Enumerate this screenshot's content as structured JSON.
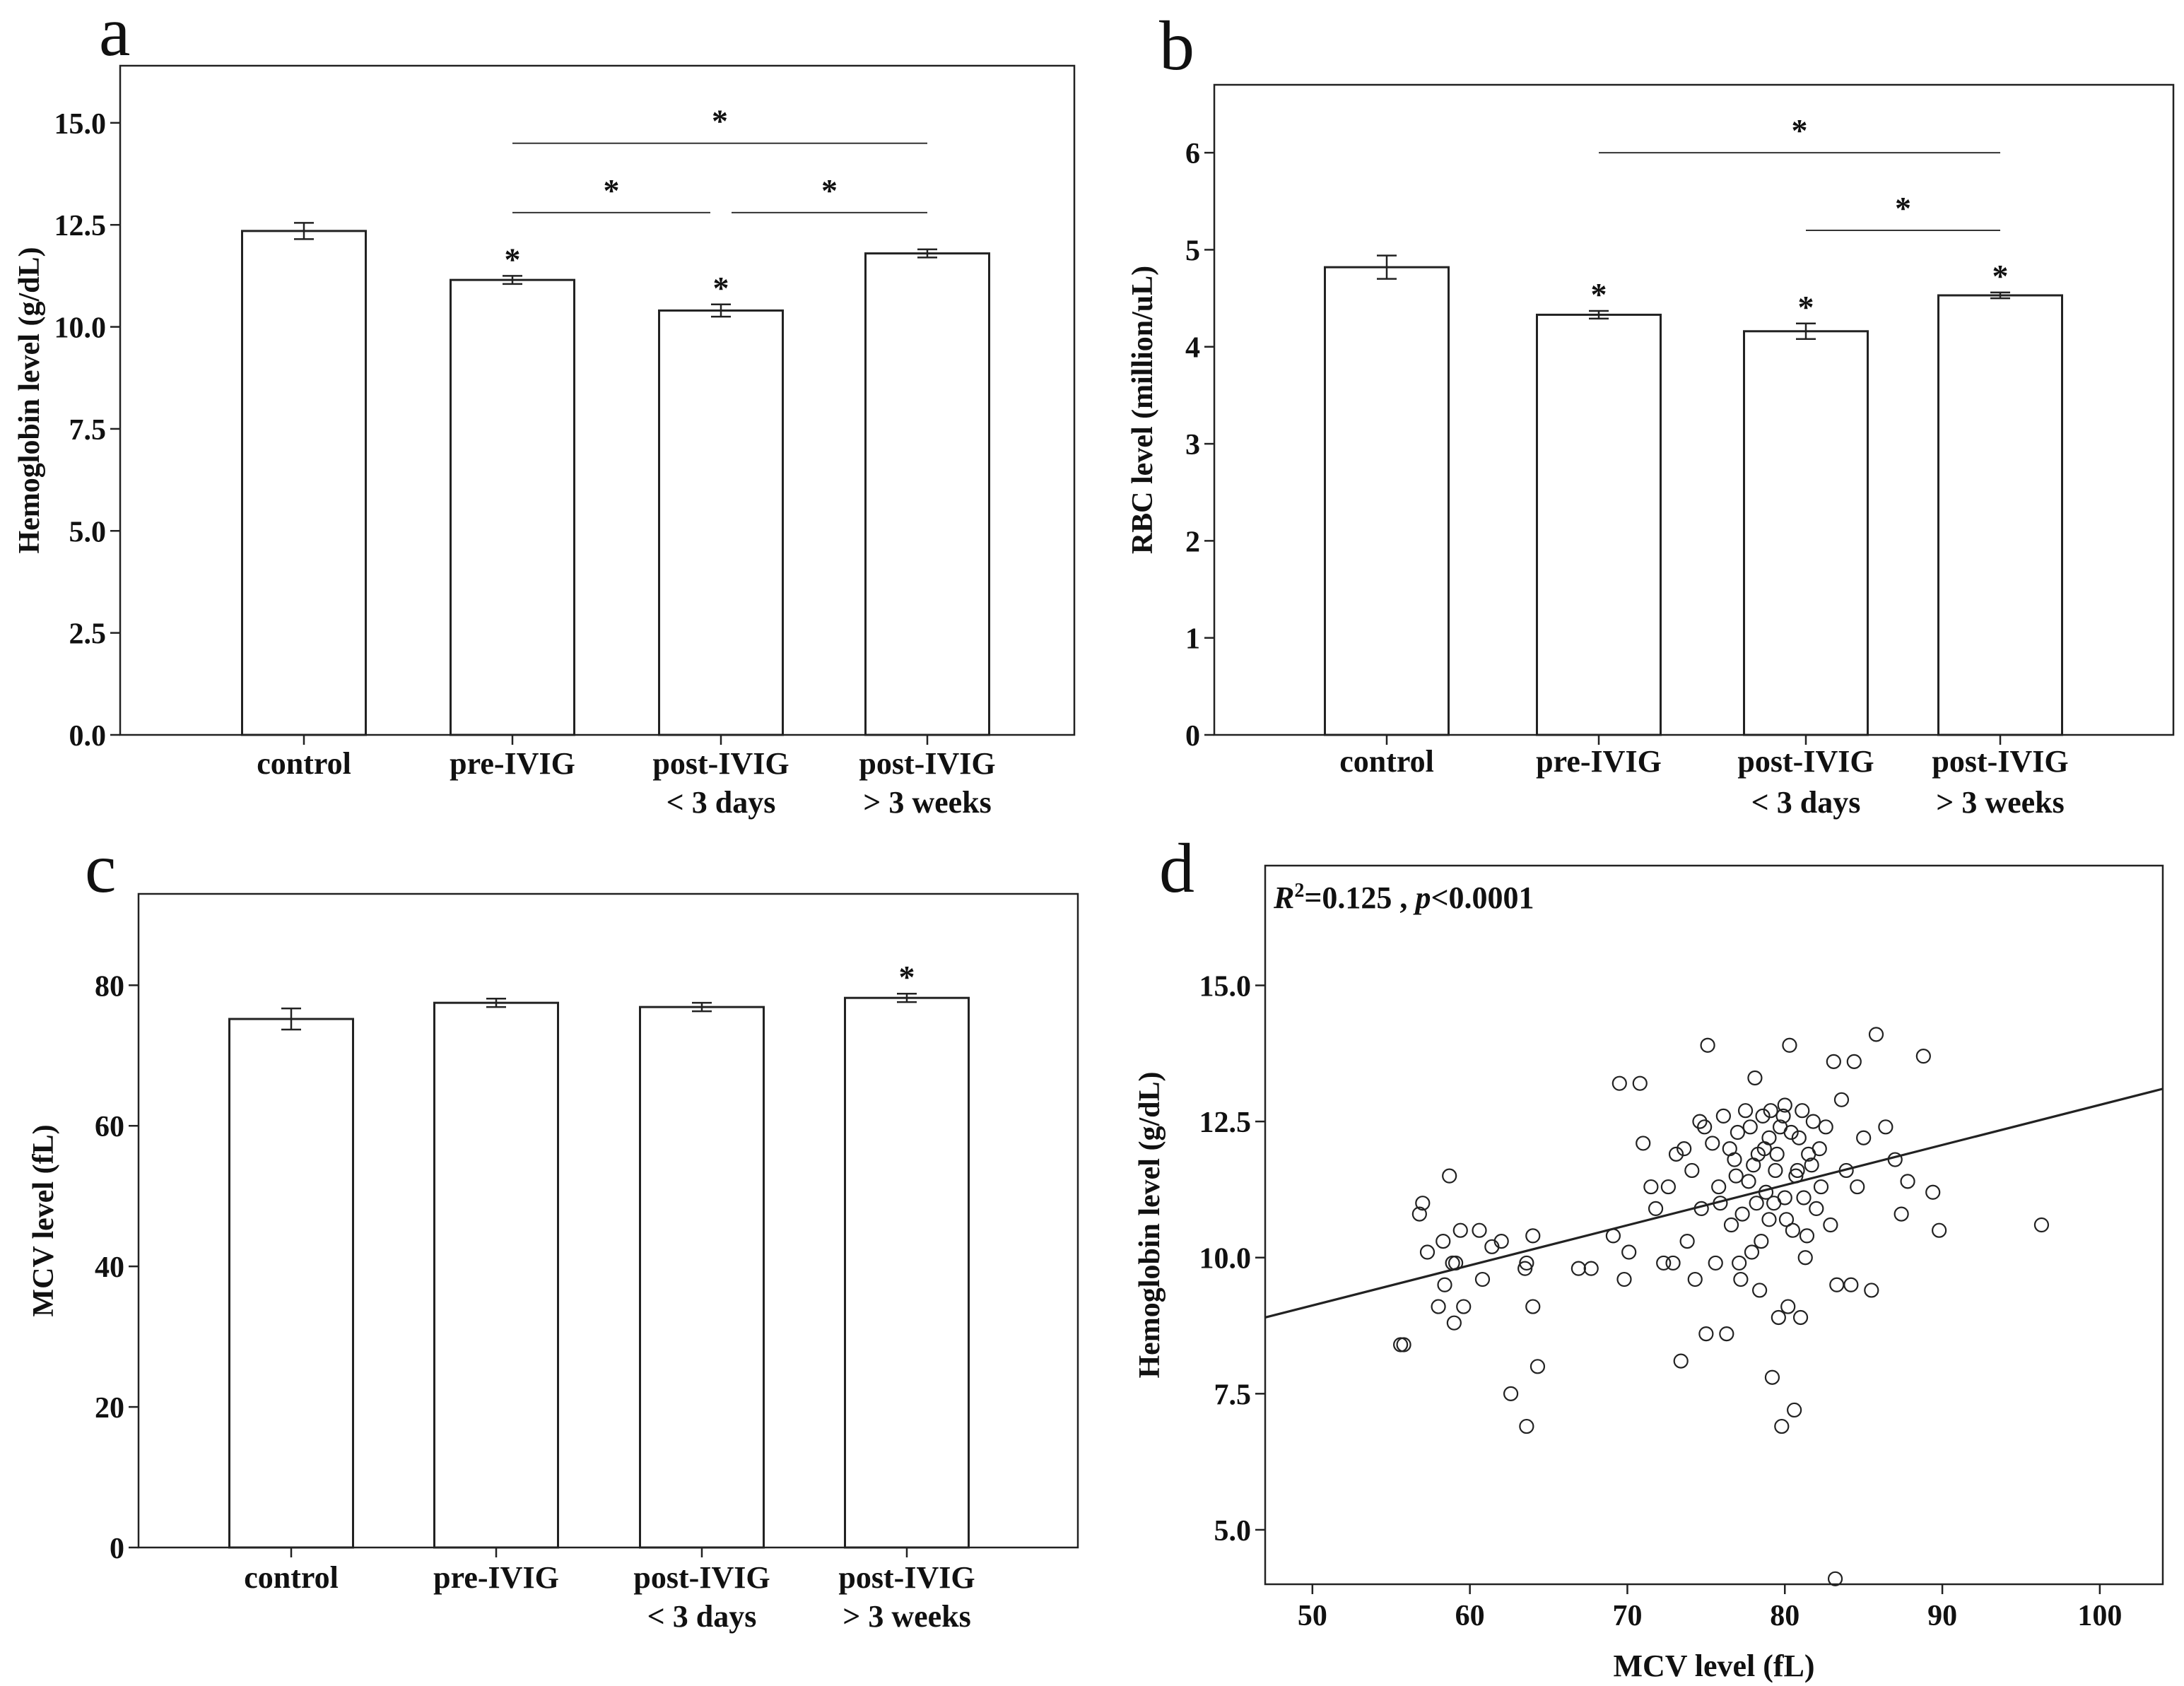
{
  "chart_data": [
    {
      "panel": "a",
      "type": "bar",
      "ylabel": "Hemoglobin level (g/dL)",
      "ylim": [
        0,
        16.4
      ],
      "yticks": [
        "0.0",
        "2.5",
        "5.0",
        "7.5",
        "10.0",
        "12.5",
        "15.0"
      ],
      "categories": [
        [
          "control"
        ],
        [
          "pre-IVIG"
        ],
        [
          "post-IVIG",
          "< 3 days"
        ],
        [
          "post-IVIG",
          "> 3 weeks"
        ]
      ],
      "values": [
        12.35,
        11.15,
        10.4,
        11.8
      ],
      "errors": [
        0.2,
        0.1,
        0.15,
        0.1
      ],
      "bar_star": [
        false,
        true,
        true,
        false
      ],
      "star_symbol": "*",
      "brackets": [
        {
          "from": 1,
          "to": 3,
          "value": 14.5
        },
        {
          "from": 1,
          "to": 2,
          "value": 12.8
        },
        {
          "from": 2,
          "to": 3,
          "value": 12.8
        }
      ]
    },
    {
      "panel": "b",
      "type": "bar",
      "ylabel": "RBC  level (million/uL)",
      "ylim": [
        0,
        6.7
      ],
      "yticks": [
        "0",
        "1",
        "2",
        "3",
        "4",
        "5",
        "6"
      ],
      "categories": [
        [
          "control"
        ],
        [
          "pre-IVIG"
        ],
        [
          "post-IVIG",
          "< 3 days"
        ],
        [
          "post-IVIG",
          "> 3 weeks"
        ]
      ],
      "values": [
        4.82,
        4.33,
        4.16,
        4.53
      ],
      "errors": [
        0.12,
        0.04,
        0.08,
        0.03
      ],
      "bar_star": [
        false,
        true,
        true,
        true
      ],
      "star_symbol": "*",
      "brackets": [
        {
          "from": 1,
          "to": 3,
          "value": 6.0
        },
        {
          "from": 2,
          "to": 3,
          "value": 5.2
        }
      ]
    },
    {
      "panel": "c",
      "type": "bar",
      "ylabel": "MCV  level (fL)",
      "ylim": [
        0,
        93
      ],
      "yticks": [
        "0",
        "20",
        "40",
        "60",
        "80"
      ],
      "categories": [
        [
          "control"
        ],
        [
          "pre-IVIG"
        ],
        [
          "post-IVIG",
          "< 3 days"
        ],
        [
          "post-IVIG",
          "> 3 weeks"
        ]
      ],
      "values": [
        75.2,
        77.5,
        76.9,
        78.2
      ],
      "errors": [
        1.5,
        0.6,
        0.6,
        0.6
      ],
      "bar_star": [
        false,
        false,
        false,
        true
      ],
      "star_symbol": "*",
      "brackets": []
    },
    {
      "panel": "d",
      "type": "scatter",
      "annotation": {
        "r2_symbol": "R",
        "r2_sup": "2",
        "r2_value": "=0.125 , ",
        "p_symbol": "p",
        "p_value": "<0.0001"
      },
      "xlabel": "MCV level (fL)",
      "ylabel": "Hemoglobin level (g/dL)",
      "xlim": [
        47,
        104
      ],
      "ylim": [
        4.0,
        17.2
      ],
      "xticks": [
        "50",
        "60",
        "70",
        "80",
        "90",
        "100"
      ],
      "yticks": [
        "5.0",
        "7.5",
        "10.0",
        "12.5",
        "15.0"
      ],
      "fit_line": {
        "x": [
          47,
          104
        ],
        "y": [
          8.9,
          13.1
        ]
      },
      "points": [
        [
          55.6,
          8.4
        ],
        [
          55.8,
          8.4
        ],
        [
          56.8,
          10.8
        ],
        [
          57.0,
          11.0
        ],
        [
          57.3,
          10.1
        ],
        [
          58.0,
          9.1
        ],
        [
          58.3,
          10.3
        ],
        [
          58.4,
          9.5
        ],
        [
          58.7,
          11.5
        ],
        [
          58.9,
          9.9
        ],
        [
          59.0,
          8.8
        ],
        [
          59.1,
          9.9
        ],
        [
          59.4,
          10.5
        ],
        [
          59.6,
          9.1
        ],
        [
          60.6,
          10.5
        ],
        [
          60.8,
          9.6
        ],
        [
          61.4,
          10.2
        ],
        [
          62.0,
          10.3
        ],
        [
          62.6,
          7.5
        ],
        [
          63.5,
          9.8
        ],
        [
          63.6,
          9.9
        ],
        [
          63.6,
          6.9
        ],
        [
          64.0,
          9.1
        ],
        [
          64.0,
          10.4
        ],
        [
          64.3,
          8.0
        ],
        [
          66.9,
          9.8
        ],
        [
          67.7,
          9.8
        ],
        [
          69.1,
          10.4
        ],
        [
          69.5,
          13.2
        ],
        [
          69.8,
          9.6
        ],
        [
          70.1,
          10.1
        ],
        [
          70.8,
          13.2
        ],
        [
          71.0,
          12.1
        ],
        [
          71.5,
          11.3
        ],
        [
          71.8,
          10.9
        ],
        [
          72.3,
          9.9
        ],
        [
          72.6,
          11.3
        ],
        [
          72.9,
          9.9
        ],
        [
          73.1,
          11.9
        ],
        [
          73.4,
          8.1
        ],
        [
          73.6,
          12.0
        ],
        [
          73.8,
          10.3
        ],
        [
          74.1,
          11.6
        ],
        [
          74.3,
          9.6
        ],
        [
          74.6,
          12.5
        ],
        [
          75.0,
          8.6
        ],
        [
          75.1,
          13.9
        ],
        [
          75.4,
          12.1
        ],
        [
          75.6,
          9.9
        ],
        [
          75.9,
          11.0
        ],
        [
          76.1,
          12.6
        ],
        [
          76.3,
          8.6
        ],
        [
          76.6,
          10.6
        ],
        [
          76.8,
          11.8
        ],
        [
          77.0,
          12.3
        ],
        [
          77.2,
          9.6
        ],
        [
          77.5,
          12.7
        ],
        [
          77.7,
          11.4
        ],
        [
          77.9,
          10.1
        ],
        [
          78.1,
          13.3
        ],
        [
          78.3,
          11.9
        ],
        [
          78.4,
          9.4
        ],
        [
          78.6,
          12.6
        ],
        [
          78.8,
          11.2
        ],
        [
          79.0,
          10.7
        ],
        [
          79.1,
          12.7
        ],
        [
          79.2,
          7.8
        ],
        [
          79.4,
          11.6
        ],
        [
          79.6,
          8.9
        ],
        [
          79.7,
          12.4
        ],
        [
          79.8,
          6.9
        ],
        [
          80.0,
          11.1
        ],
        [
          80.2,
          9.1
        ],
        [
          80.3,
          13.9
        ],
        [
          80.4,
          12.3
        ],
        [
          80.5,
          10.5
        ],
        [
          80.6,
          7.2
        ],
        [
          80.8,
          11.6
        ],
        [
          81.0,
          8.9
        ],
        [
          81.1,
          12.7
        ],
        [
          81.3,
          10.0
        ],
        [
          81.5,
          11.9
        ],
        [
          81.8,
          12.5
        ],
        [
          82.0,
          10.9
        ],
        [
          82.3,
          11.3
        ],
        [
          82.6,
          12.4
        ],
        [
          82.9,
          10.6
        ],
        [
          83.1,
          13.6
        ],
        [
          83.3,
          9.5
        ],
        [
          83.2,
          4.1
        ],
        [
          83.6,
          12.9
        ],
        [
          83.9,
          11.6
        ],
        [
          84.2,
          9.5
        ],
        [
          84.4,
          13.6
        ],
        [
          84.6,
          11.3
        ],
        [
          85.0,
          12.2
        ],
        [
          85.5,
          9.4
        ],
        [
          85.8,
          14.1
        ],
        [
          86.4,
          12.4
        ],
        [
          87.0,
          11.8
        ],
        [
          87.4,
          10.8
        ],
        [
          87.8,
          11.4
        ],
        [
          88.8,
          13.7
        ],
        [
          89.4,
          11.2
        ],
        [
          89.8,
          10.5
        ],
        [
          96.3,
          10.6
        ],
        [
          74.9,
          12.4
        ],
        [
          75.8,
          11.3
        ],
        [
          76.5,
          12.0
        ],
        [
          77.3,
          10.8
        ],
        [
          78.0,
          11.7
        ],
        [
          78.7,
          12.0
        ],
        [
          79.3,
          11.0
        ],
        [
          79.9,
          12.6
        ],
        [
          80.7,
          11.5
        ],
        [
          81.4,
          10.4
        ],
        [
          82.2,
          12.0
        ],
        [
          76.9,
          11.5
        ],
        [
          77.8,
          12.4
        ],
        [
          78.5,
          10.3
        ],
        [
          79.5,
          11.9
        ],
        [
          80.1,
          10.7
        ],
        [
          80.9,
          12.2
        ],
        [
          81.7,
          11.7
        ],
        [
          74.7,
          10.9
        ],
        [
          77.1,
          9.9
        ],
        [
          78.2,
          11.0
        ],
        [
          79.0,
          12.2
        ],
        [
          80.0,
          12.8
        ],
        [
          81.2,
          11.1
        ]
      ]
    }
  ],
  "labels": {
    "a": "a",
    "b": "b",
    "c": "c",
    "d": "d"
  }
}
